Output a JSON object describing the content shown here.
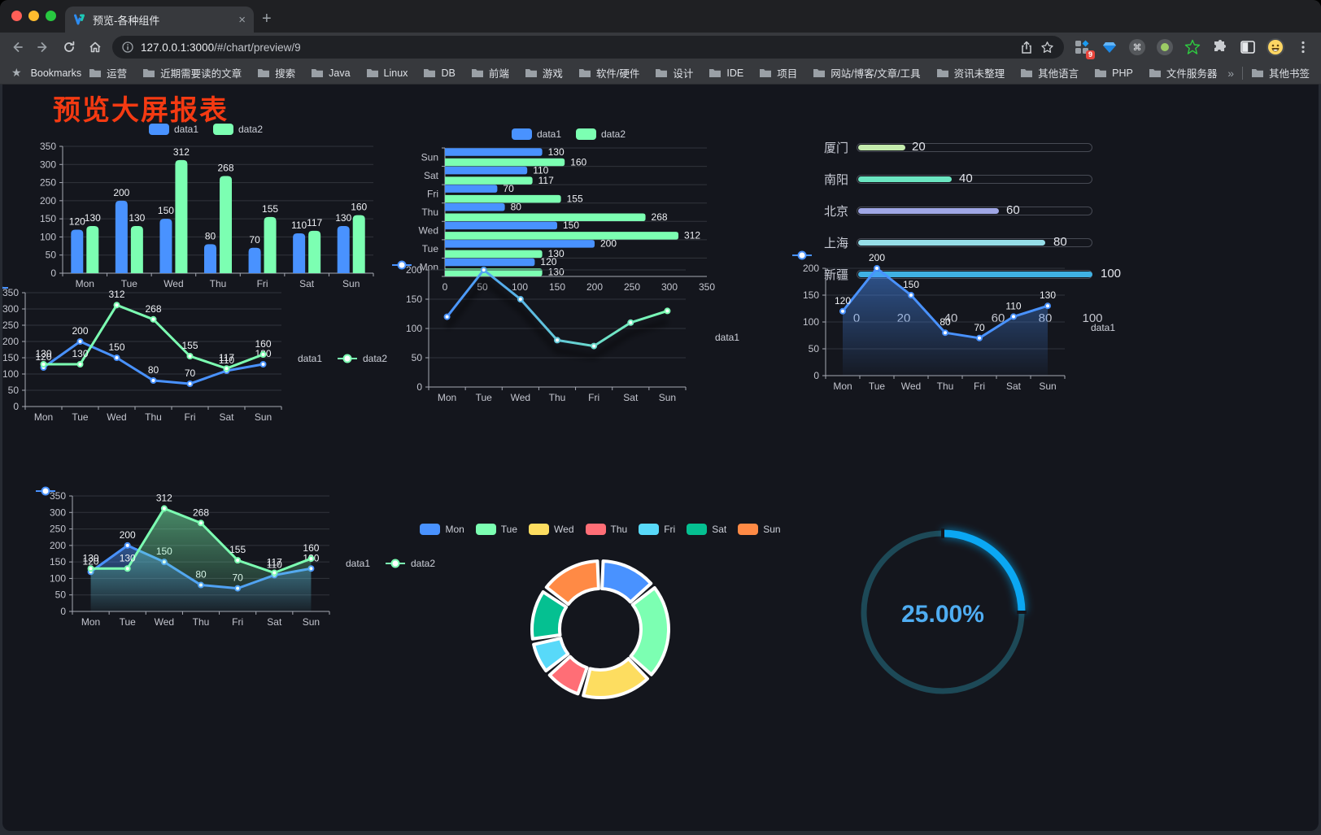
{
  "browser": {
    "tab_title": "预览-各种组件",
    "tab_close_label": "×",
    "new_tab_label": "+",
    "url_host": "127.0.0.1:3000",
    "url_rest": "/#/chart/preview/9",
    "extension_badge": "9",
    "bookmarks_label": "Bookmarks",
    "bookmarks_star": "★",
    "bookmarks": [
      "运营",
      "近期需要读的文章",
      "搜索",
      "Java",
      "Linux",
      "DB",
      "前端",
      "游戏",
      "软件/硬件",
      "设计",
      "IDE",
      "项目",
      "网站/博客/文章/工具",
      "资讯未整理",
      "其他语言",
      "PHP",
      "文件服务器"
    ],
    "bookmarks_overflow": "»",
    "other_bookmarks": "其他书签"
  },
  "page": {
    "title": "预览大屏报表",
    "title_color": "#f43a12",
    "background": "#14161d"
  },
  "chart_data": [
    {
      "id": "bar-grouped",
      "type": "bar",
      "categories": [
        "Mon",
        "Tue",
        "Wed",
        "Thu",
        "Fri",
        "Sat",
        "Sun"
      ],
      "series": [
        {
          "name": "data1",
          "color": "#4992ff",
          "values": [
            120,
            200,
            150,
            80,
            70,
            110,
            130
          ]
        },
        {
          "name": "data2",
          "color": "#7cffb2",
          "values": [
            130,
            130,
            312,
            268,
            155,
            117,
            160
          ]
        }
      ],
      "ylim": [
        0,
        350
      ],
      "ytick_step": 50,
      "legend_position": "top",
      "grid": true,
      "show_labels": true
    },
    {
      "id": "hbar-grouped",
      "type": "bar-horizontal",
      "categories": [
        "Mon",
        "Tue",
        "Wed",
        "Thu",
        "Fri",
        "Sat",
        "Sun"
      ],
      "series": [
        {
          "name": "data1",
          "color": "#4992ff",
          "values": [
            120,
            200,
            150,
            80,
            70,
            110,
            130
          ]
        },
        {
          "name": "data2",
          "color": "#7cffb2",
          "values": [
            130,
            130,
            312,
            268,
            155,
            117,
            160
          ]
        }
      ],
      "xlim": [
        0,
        350
      ],
      "xtick_step": 50,
      "legend_position": "top",
      "show_labels": true
    },
    {
      "id": "progress",
      "type": "progress-bars",
      "items": [
        {
          "label": "厦门",
          "value": 20,
          "color": "#c4ebad"
        },
        {
          "label": "南阳",
          "value": 40,
          "color": "#6be6c1"
        },
        {
          "label": "北京",
          "value": 60,
          "color": "#a0a7e6"
        },
        {
          "label": "上海",
          "value": 80,
          "color": "#96dee8"
        },
        {
          "label": "新疆",
          "value": 100,
          "color": "#3fb1e3"
        }
      ],
      "xlim": [
        0,
        100
      ],
      "ticks": [
        0,
        20,
        40,
        60,
        80,
        100
      ]
    },
    {
      "id": "line-two",
      "type": "line",
      "categories": [
        "Mon",
        "Tue",
        "Wed",
        "Thu",
        "Fri",
        "Sat",
        "Sun"
      ],
      "series": [
        {
          "name": "data1",
          "color": "#4992ff",
          "values": [
            120,
            200,
            150,
            80,
            70,
            110,
            130
          ],
          "area": false
        },
        {
          "name": "data2",
          "color": "#7cffb2",
          "values": [
            130,
            130,
            312,
            268,
            155,
            117,
            160
          ],
          "area": false
        }
      ],
      "ylim": [
        0,
        350
      ],
      "ytick_step": 50,
      "legend_position": "top",
      "show_labels": true
    },
    {
      "id": "line-gradient",
      "type": "line",
      "categories": [
        "Mon",
        "Tue",
        "Wed",
        "Thu",
        "Fri",
        "Sat",
        "Sun"
      ],
      "series": [
        {
          "name": "data1",
          "color": "#4992ff",
          "color_start": "#4992ff",
          "color_end": "#7cffb2",
          "values": [
            120,
            200,
            150,
            80,
            70,
            110,
            130
          ],
          "area": false
        }
      ],
      "ylim": [
        0,
        200
      ],
      "ytick_step": 50,
      "legend_position": "top",
      "show_labels": false,
      "shadow": true
    },
    {
      "id": "line-area",
      "type": "line",
      "categories": [
        "Mon",
        "Tue",
        "Wed",
        "Thu",
        "Fri",
        "Sat",
        "Sun"
      ],
      "series": [
        {
          "name": "data1",
          "color": "#4992ff",
          "values": [
            120,
            200,
            150,
            80,
            70,
            110,
            130
          ],
          "area": true
        }
      ],
      "ylim": [
        0,
        200
      ],
      "ytick_step": 50,
      "legend_position": "top",
      "show_labels": true
    },
    {
      "id": "line-two-area",
      "type": "line",
      "categories": [
        "Mon",
        "Tue",
        "Wed",
        "Thu",
        "Fri",
        "Sat",
        "Sun"
      ],
      "series": [
        {
          "name": "data1",
          "color": "#4992ff",
          "values": [
            120,
            200,
            150,
            80,
            70,
            110,
            130
          ],
          "area": true
        },
        {
          "name": "data2",
          "color": "#7cffb2",
          "values": [
            130,
            130,
            312,
            268,
            155,
            117,
            160
          ],
          "area": true
        }
      ],
      "ylim": [
        0,
        350
      ],
      "ytick_step": 50,
      "legend_position": "top",
      "show_labels": true
    },
    {
      "id": "pie-donut",
      "type": "pie",
      "donut": true,
      "categories": [
        "Mon",
        "Tue",
        "Wed",
        "Thu",
        "Fri",
        "Sat",
        "Sun"
      ],
      "values": [
        120,
        200,
        150,
        80,
        70,
        110,
        130
      ],
      "colors": [
        "#4992ff",
        "#7cffb2",
        "#fddd60",
        "#ff6e76",
        "#58d9f9",
        "#05c091",
        "#ff8a45"
      ],
      "legend_position": "top"
    },
    {
      "id": "gauge",
      "type": "gauge",
      "percent": 25,
      "label": "25.00%",
      "arc_color": "#0ba7f3",
      "track_color": "#1d4957",
      "text_color": "#4fadf2"
    }
  ]
}
